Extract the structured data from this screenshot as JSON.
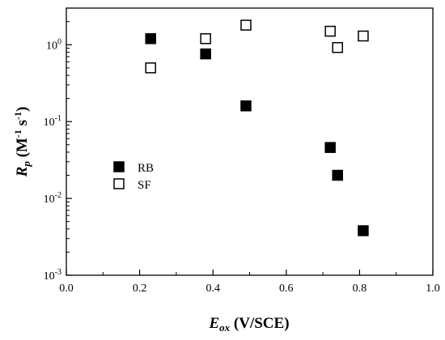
{
  "chart_data": {
    "type": "scatter",
    "title": "",
    "xlabel": {
      "main": "E",
      "sub": "ox",
      "rest": " (V/SCE)"
    },
    "ylabel": {
      "main": "R",
      "sub": "p",
      "unit_open": " (M",
      "sup1": "-1",
      "mid": " s",
      "sup2": "-1",
      "unit_close": ")"
    },
    "x_range": [
      0.0,
      1.0
    ],
    "y_range": [
      0.001,
      3.0
    ],
    "y_scale": "log",
    "x_ticks": [
      {
        "value": 0.0,
        "label": "0.0"
      },
      {
        "value": 0.2,
        "label": "0.2"
      },
      {
        "value": 0.4,
        "label": "0.4"
      },
      {
        "value": 0.6,
        "label": "0.6"
      },
      {
        "value": 0.8,
        "label": "0.8"
      },
      {
        "value": 1.0,
        "label": "1.0"
      }
    ],
    "y_ticks": [
      {
        "value": 0.001,
        "base": "10",
        "exp": "-3"
      },
      {
        "value": 0.01,
        "base": "10",
        "exp": "-2"
      },
      {
        "value": 0.1,
        "base": "10",
        "exp": "-1"
      },
      {
        "value": 1,
        "base": "10",
        "exp": "0"
      }
    ],
    "grid": false,
    "legend_position": "center-left",
    "series": [
      {
        "name": "RB",
        "marker": "filled-square",
        "color": "#000000",
        "points": [
          {
            "x": 0.23,
            "y": 1.2
          },
          {
            "x": 0.38,
            "y": 0.76
          },
          {
            "x": 0.49,
            "y": 0.16
          },
          {
            "x": 0.72,
            "y": 0.046
          },
          {
            "x": 0.74,
            "y": 0.02
          },
          {
            "x": 0.81,
            "y": 0.0038
          }
        ]
      },
      {
        "name": "SF",
        "marker": "open-square",
        "color": "#000000",
        "points": [
          {
            "x": 0.23,
            "y": 0.5
          },
          {
            "x": 0.38,
            "y": 1.2
          },
          {
            "x": 0.49,
            "y": 1.8
          },
          {
            "x": 0.72,
            "y": 1.5
          },
          {
            "x": 0.74,
            "y": 0.92
          },
          {
            "x": 0.81,
            "y": 1.3
          }
        ]
      }
    ]
  }
}
